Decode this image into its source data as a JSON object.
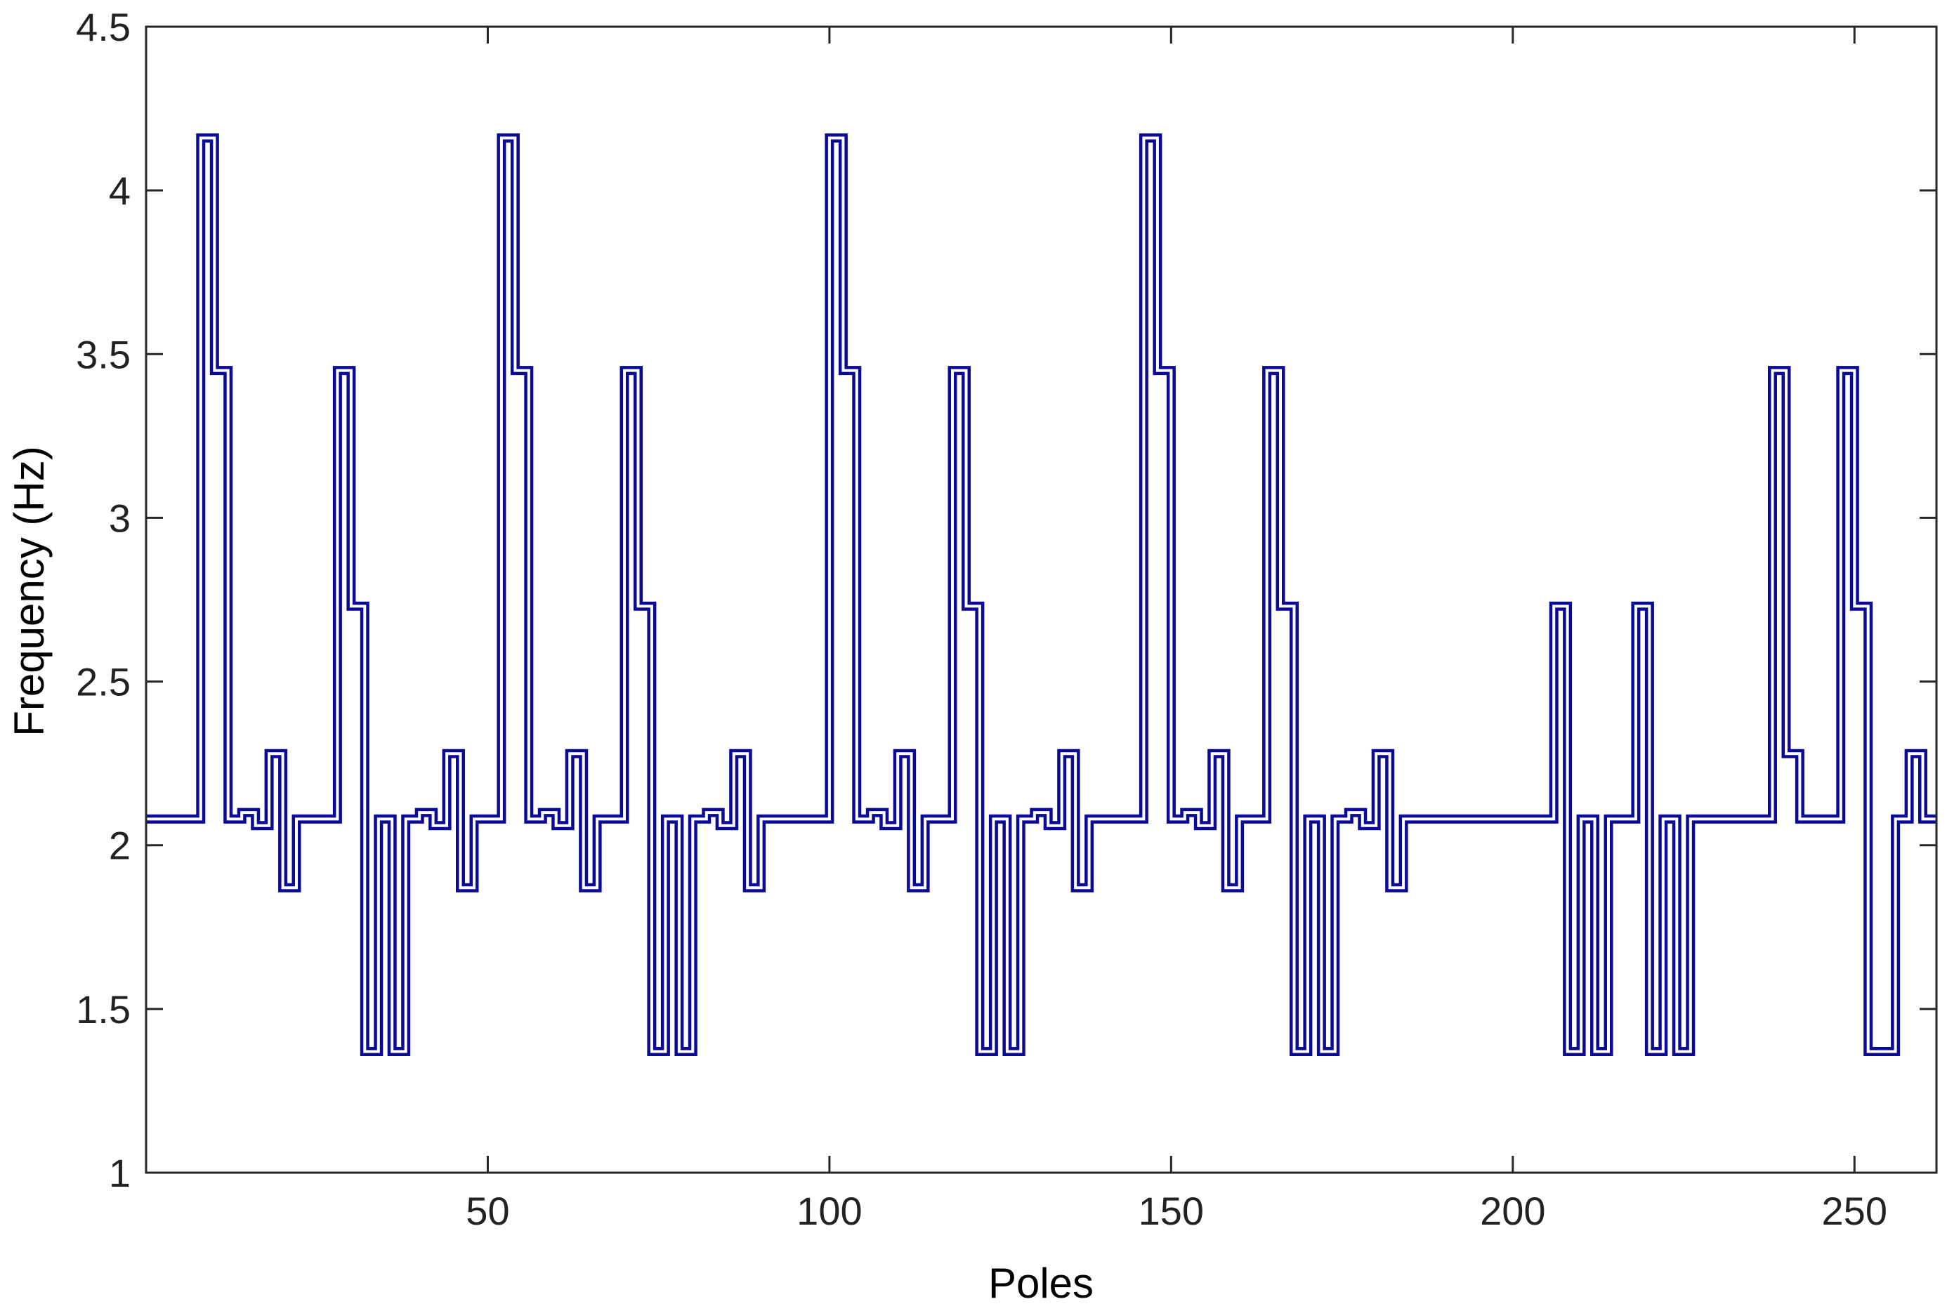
{
  "chart_data": {
    "type": "line",
    "title": "",
    "xlabel": "Poles",
    "ylabel": "Frequency  (Hz)",
    "xlim": [
      0,
      262
    ],
    "ylim": [
      1,
      4.5
    ],
    "xticks": [
      50,
      100,
      150,
      200,
      250
    ],
    "xtick_labels": [
      "50",
      "100",
      "150",
      "200",
      "250"
    ],
    "yticks": [
      1,
      1.5,
      2,
      2.5,
      3,
      3.5,
      4,
      4.5
    ],
    "ytick_labels": [
      "1",
      "1.5",
      "2",
      "2.5",
      "3",
      "3.5",
      "4",
      "4.5"
    ],
    "grid": false,
    "line_color": "#0a0a96",
    "line_style": "step",
    "series": [
      {
        "x": [
          0,
          8,
          10,
          12,
          14,
          16,
          18,
          20,
          22,
          24,
          26,
          28,
          30,
          32,
          34,
          36,
          38,
          40,
          42,
          44,
          46,
          48,
          50,
          52,
          54,
          56,
          58,
          60,
          62,
          64,
          66,
          68,
          70,
          72,
          74,
          76,
          78,
          80,
          82,
          84,
          86,
          88,
          90,
          92,
          94,
          96,
          98,
          100,
          102,
          104,
          106,
          108,
          110,
          112,
          114,
          116,
          118,
          120,
          122,
          124,
          126,
          128,
          130,
          132,
          134,
          136,
          138,
          140,
          142,
          144,
          146,
          148,
          150,
          152,
          154,
          156,
          158,
          160,
          162,
          164,
          166,
          168,
          170,
          172,
          174,
          176,
          178,
          180,
          182,
          184,
          186,
          188,
          190,
          192,
          194,
          196,
          198,
          200,
          202,
          204,
          206,
          208,
          210,
          212,
          214,
          216,
          218,
          220,
          222,
          224,
          226,
          228,
          230,
          232,
          234,
          236,
          238,
          240,
          242,
          244,
          246,
          248,
          250,
          252,
          254,
          256,
          258,
          260,
          262
        ],
        "values": [
          2.08,
          4.16,
          3.45,
          2.08,
          2.1,
          2.06,
          2.28,
          1.87,
          2.08,
          2.08,
          2.08,
          3.45,
          2.73,
          1.37,
          2.08,
          1.37,
          2.08,
          2.1,
          2.06,
          2.28,
          1.87,
          2.08,
          2.08,
          4.16,
          3.45,
          2.08,
          2.1,
          2.06,
          2.28,
          1.87,
          2.08,
          2.08,
          3.45,
          2.73,
          1.37,
          2.08,
          1.37,
          2.08,
          2.1,
          2.06,
          2.28,
          1.87,
          2.08,
          2.08,
          2.08,
          2.08,
          2.08,
          4.16,
          3.45,
          2.08,
          2.1,
          2.06,
          2.28,
          1.87,
          2.08,
          2.08,
          3.45,
          2.73,
          1.37,
          2.08,
          1.37,
          2.08,
          2.1,
          2.06,
          2.28,
          1.87,
          2.08,
          2.08,
          2.08,
          2.08,
          4.16,
          3.45,
          2.08,
          2.1,
          2.06,
          2.28,
          1.87,
          2.08,
          2.08,
          3.45,
          2.73,
          1.37,
          2.08,
          1.37,
          2.08,
          2.1,
          2.06,
          2.28,
          1.87,
          2.08,
          2.08,
          2.08,
          2.08,
          2.08,
          2.08,
          2.08,
          2.08,
          2.08,
          2.08,
          2.08,
          2.73,
          1.37,
          2.08,
          1.37,
          2.08,
          2.08,
          2.73,
          1.37,
          2.08,
          1.37,
          2.08,
          2.08,
          2.08,
          2.08,
          2.08,
          2.08,
          3.45,
          2.28,
          2.08,
          2.08,
          2.08,
          3.45,
          2.73,
          1.37,
          1.37,
          2.08,
          2.28,
          2.08,
          2.08
        ]
      }
    ]
  }
}
